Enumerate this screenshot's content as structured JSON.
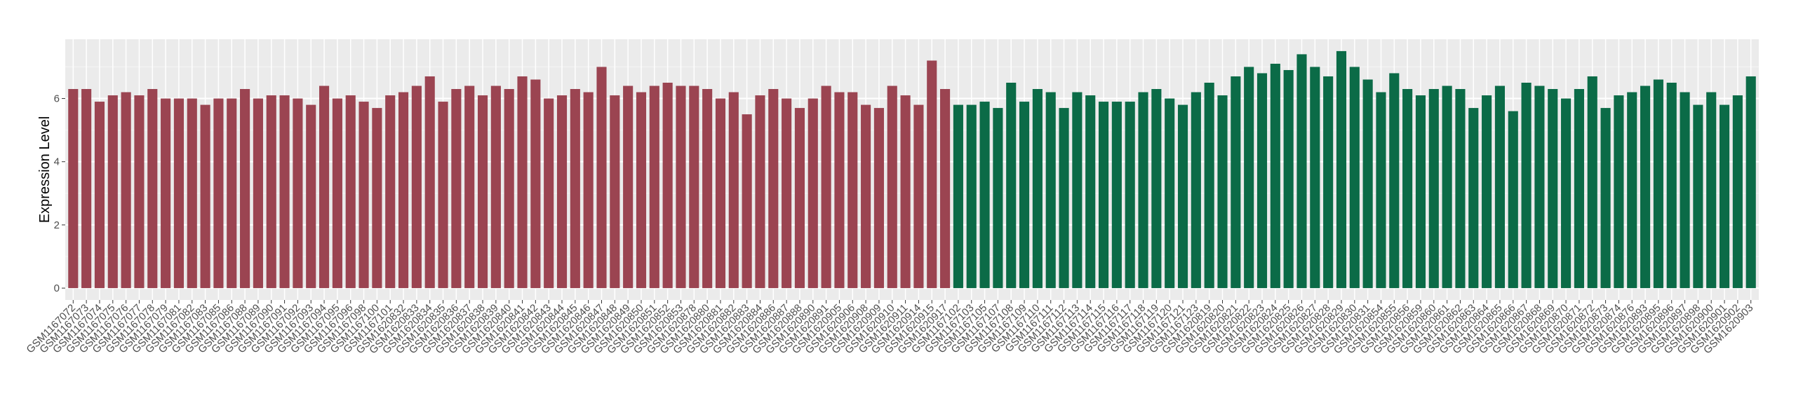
{
  "chart_data": {
    "type": "bar",
    "y_label": "Expression Level",
    "ylim": [
      -0.375,
      7.875
    ],
    "yticks": [
      0,
      2,
      4,
      6
    ],
    "grid": true,
    "series": [
      {
        "color": "#9b4451",
        "categories": [
          "GSM1167072",
          "GSM1167073",
          "GSM1167074",
          "GSM1167075",
          "GSM1167076",
          "GSM1167077",
          "GSM1167078",
          "GSM1167079",
          "GSM1167081",
          "GSM1167082",
          "GSM1167083",
          "GSM1167085",
          "GSM1167086",
          "GSM1167088",
          "GSM1167089",
          "GSM1167090",
          "GSM1167091",
          "GSM1167092",
          "GSM1167093",
          "GSM1167094",
          "GSM1167095",
          "GSM1167096",
          "GSM1167098",
          "GSM1167100",
          "GSM1167101",
          "GSM1620832",
          "GSM1620833",
          "GSM1620834",
          "GSM1620835",
          "GSM1620836",
          "GSM1620837",
          "GSM1620838",
          "GSM1620839",
          "GSM1620840",
          "GSM1620841",
          "GSM1620842",
          "GSM1620843",
          "GSM1620844",
          "GSM1620845",
          "GSM1620846",
          "GSM1620847",
          "GSM1620848",
          "GSM1620849",
          "GSM1620850",
          "GSM1620851",
          "GSM1620852",
          "GSM1620853",
          "GSM1620878",
          "GSM1620880",
          "GSM1620881",
          "GSM1620882",
          "GSM1620883",
          "GSM1620884",
          "GSM1620886",
          "GSM1620887",
          "GSM1620888",
          "GSM1620890",
          "GSM1620891",
          "GSM1620905",
          "GSM1620906",
          "GSM1620908",
          "GSM1620909",
          "GSM1620910",
          "GSM1620911",
          "GSM1620914",
          "GSM1620915",
          "GSM1620917"
        ],
        "values": [
          6.3,
          6.3,
          5.9,
          6.1,
          6.2,
          6.1,
          6.3,
          6.0,
          6.0,
          6.0,
          5.8,
          6.0,
          6.0,
          6.3,
          6.0,
          6.1,
          6.1,
          6.0,
          5.8,
          6.4,
          6.0,
          6.1,
          5.9,
          5.7,
          6.1,
          6.2,
          6.4,
          6.7,
          5.9,
          6.3,
          6.4,
          6.1,
          6.4,
          6.3,
          6.7,
          6.6,
          6.0,
          6.1,
          6.3,
          6.2,
          7.0,
          6.1,
          6.4,
          6.2,
          6.4,
          6.5,
          6.4,
          6.4,
          6.3,
          6.0,
          6.2,
          5.5,
          6.1,
          6.3,
          6.0,
          5.7,
          6.0,
          6.4,
          6.2,
          6.2,
          5.8,
          5.7,
          6.4,
          6.1,
          5.8,
          7.2,
          6.3
        ]
      },
      {
        "color": "#0b6b47",
        "categories": [
          "GSM1167102",
          "GSM1167103",
          "GSM1167105",
          "GSM1167107",
          "GSM1167108",
          "GSM1167109",
          "GSM1167110",
          "GSM1167111",
          "GSM1167112",
          "GSM1167113",
          "GSM1167114",
          "GSM1167115",
          "GSM1167116",
          "GSM1167117",
          "GSM1167118",
          "GSM1167119",
          "GSM1167120",
          "GSM1167121",
          "GSM1167123",
          "GSM1620819",
          "GSM1620820",
          "GSM1620821",
          "GSM1620822",
          "GSM1620823",
          "GSM1620824",
          "GSM1620825",
          "GSM1620826",
          "GSM1620827",
          "GSM1620828",
          "GSM1620829",
          "GSM1620830",
          "GSM1620831",
          "GSM1620854",
          "GSM1620855",
          "GSM1620856",
          "GSM1620859",
          "GSM1620860",
          "GSM1620861",
          "GSM1620862",
          "GSM1620863",
          "GSM1620864",
          "GSM1620865",
          "GSM1620866",
          "GSM1620867",
          "GSM1620868",
          "GSM1620869",
          "GSM1620870",
          "GSM1620871",
          "GSM1620872",
          "GSM1620873",
          "GSM1620874",
          "GSM1620876",
          "GSM1620893",
          "GSM1620895",
          "GSM1620896",
          "GSM1620897",
          "GSM1620898",
          "GSM1620900",
          "GSM1620901",
          "GSM1620902",
          "GSM1620903"
        ],
        "values": [
          5.8,
          5.8,
          5.9,
          5.7,
          6.5,
          5.9,
          6.3,
          6.2,
          5.7,
          6.2,
          6.1,
          5.9,
          5.9,
          5.9,
          6.2,
          6.3,
          6.0,
          5.8,
          6.2,
          6.5,
          6.1,
          6.7,
          7.0,
          6.8,
          7.1,
          6.9,
          7.4,
          7.0,
          6.7,
          7.5,
          7.0,
          6.6,
          6.2,
          6.8,
          6.3,
          6.1,
          6.3,
          6.4,
          6.3,
          5.7,
          6.1,
          6.4,
          5.6,
          6.5,
          6.4,
          6.3,
          6.0,
          6.3,
          6.7,
          5.7,
          6.1,
          6.2,
          6.4,
          6.6,
          6.5,
          6.2,
          5.8,
          6.2,
          5.8,
          6.1,
          6.7
        ]
      }
    ]
  }
}
